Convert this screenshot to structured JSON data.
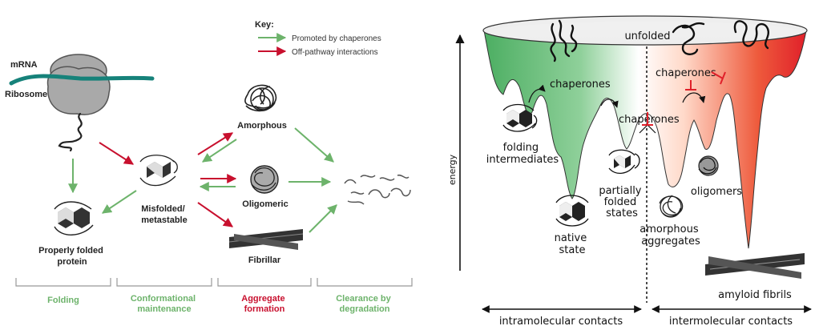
{
  "left_panel": {
    "key_title": "Key:",
    "key_items": [
      {
        "label": "Promoted by chaperones",
        "color": "#6db36b"
      },
      {
        "label": "Off-pathway interactions",
        "color": "#c8102e"
      }
    ],
    "mrna_label": "mRNA",
    "ribosome_label": "Ribosome",
    "properly_folded_label": [
      "Properly folded",
      "protein"
    ],
    "misfolded_label": [
      "Misfolded/",
      "metastable"
    ],
    "amorphous_label": "Amorphous",
    "oligomeric_label": "Oligomeric",
    "fibrillar_label": "Fibrillar",
    "stages": [
      {
        "label": [
          "Folding"
        ],
        "color": "#6db36b"
      },
      {
        "label": [
          "Conformational",
          "maintenance"
        ],
        "color": "#6db36b"
      },
      {
        "label": [
          "Aggregate",
          "formation"
        ],
        "color": "#c8102e"
      },
      {
        "label": [
          "Clearance by",
          "degradation"
        ],
        "color": "#6db36b"
      }
    ]
  },
  "right_panel": {
    "unfolded_label": "unfolded",
    "energy_label": "energy",
    "chaperones_labels": [
      "chaperones",
      "chaperones",
      "chaperones"
    ],
    "folding_intermediates_label": [
      "folding",
      "intermediates"
    ],
    "partially_folded_label": [
      "partially",
      "folded",
      "states"
    ],
    "native_state_label": [
      "native",
      "state"
    ],
    "amorphous_aggregates_label": [
      "amorphous",
      "aggregates"
    ],
    "oligomers_label": "oligomers",
    "amyloid_fibrils_label": "amyloid fibrils",
    "intramolecular_label": "intramolecular contacts",
    "intermolecular_label": "intermolecular contacts",
    "colors": {
      "green": "#5bb36a",
      "red": "#e0202a"
    }
  }
}
